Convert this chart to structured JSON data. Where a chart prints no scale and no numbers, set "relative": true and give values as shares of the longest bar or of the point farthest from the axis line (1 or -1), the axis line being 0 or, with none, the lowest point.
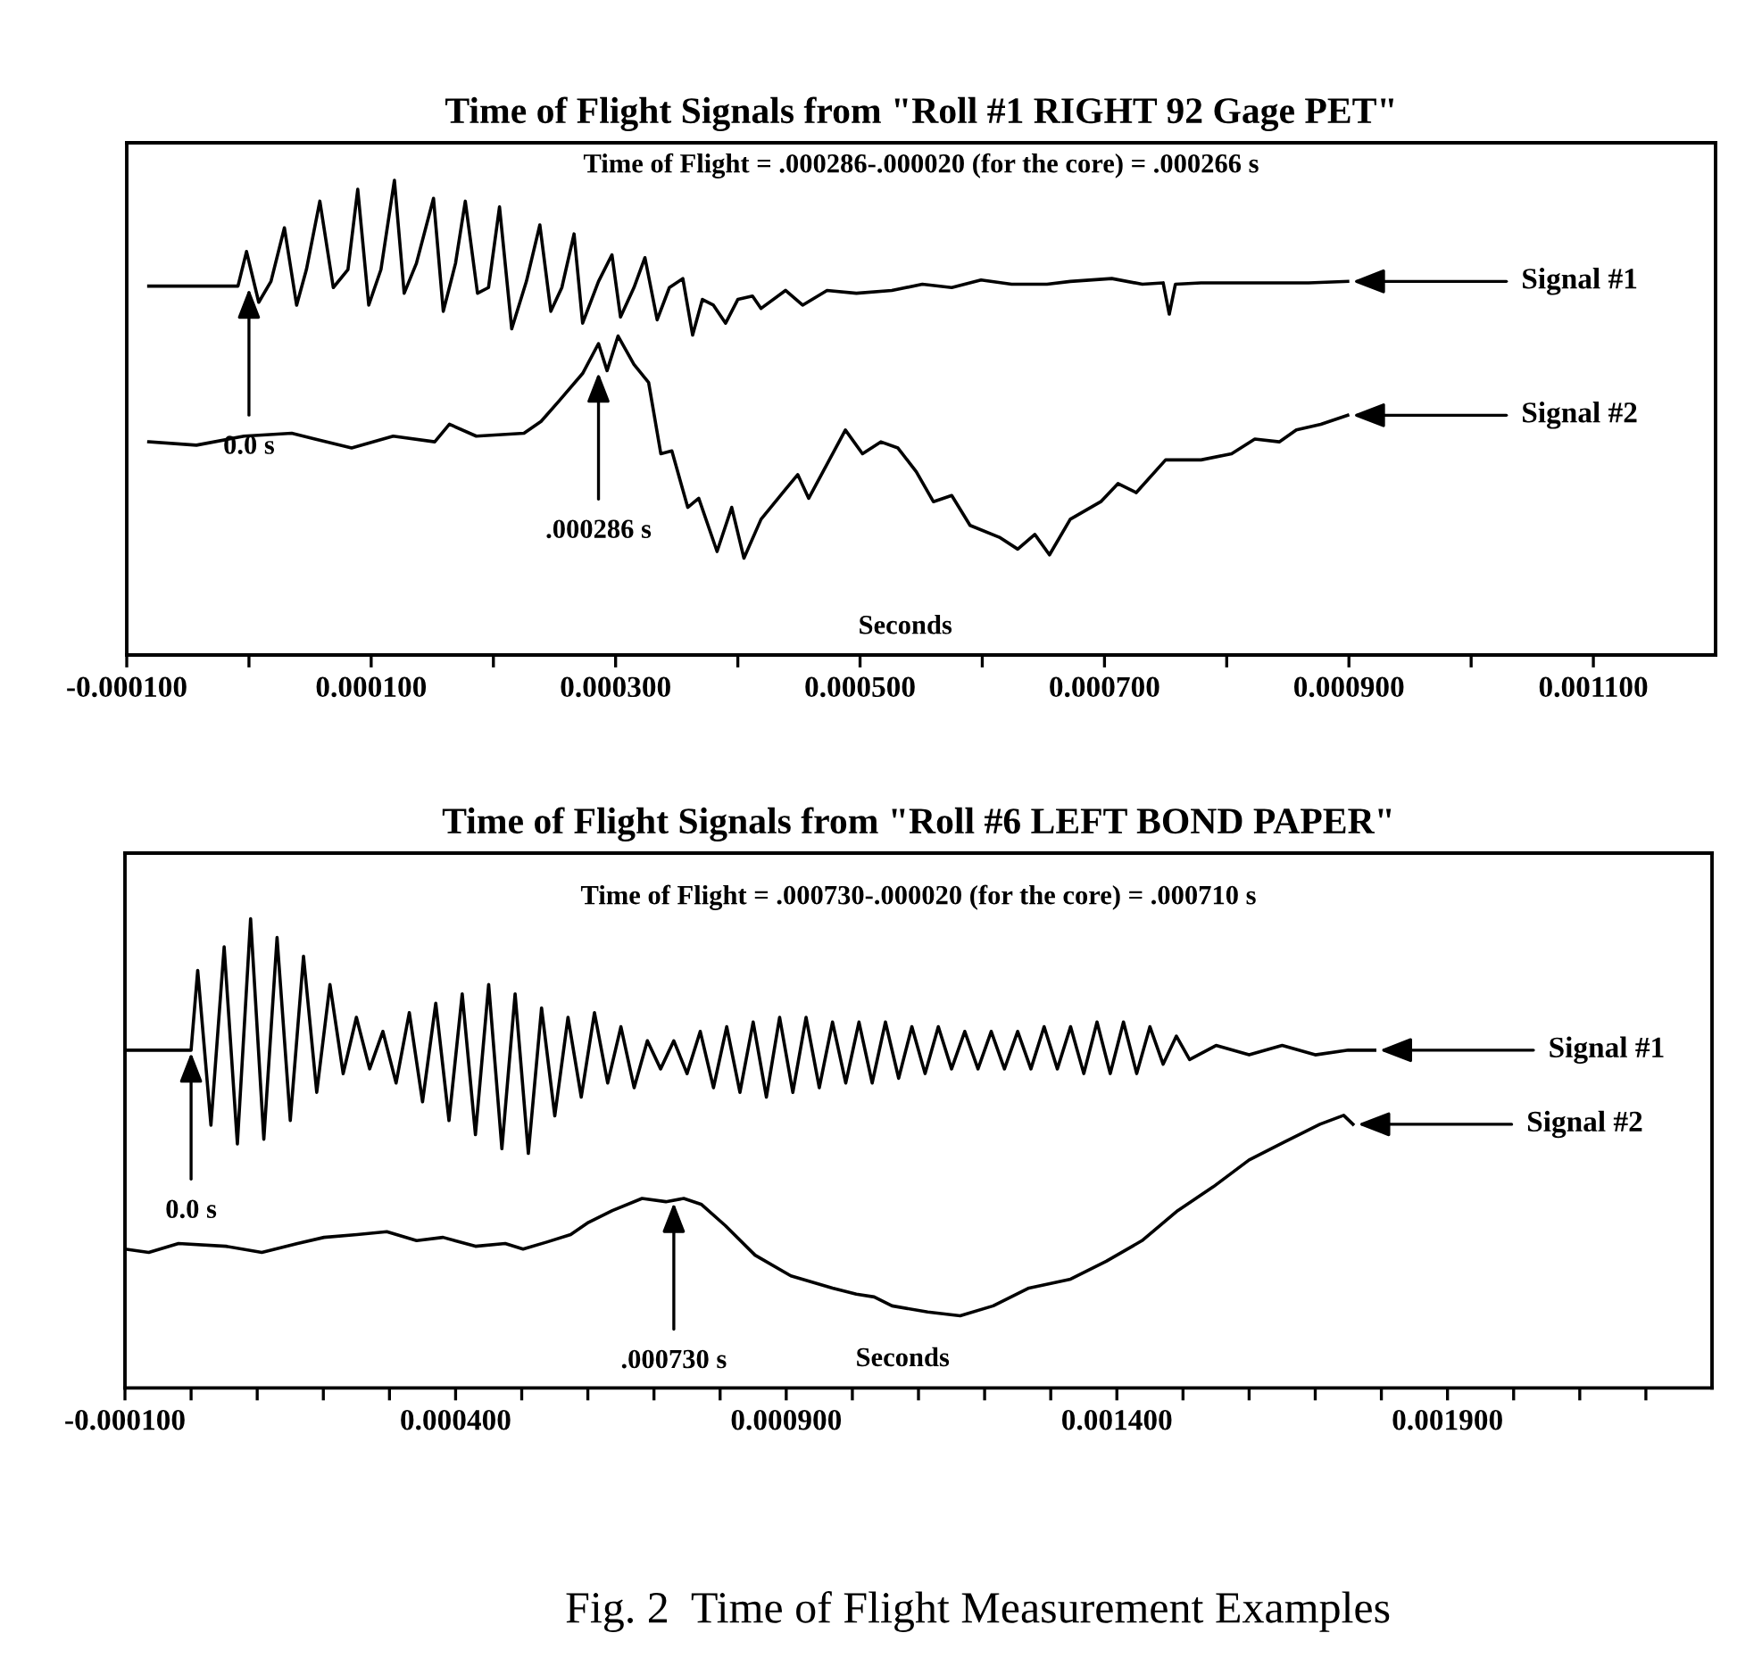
{
  "chart_data": [
    {
      "type": "line",
      "title": "Time of Flight Signals from \"Roll #1 RIGHT 92 Gage PET\"",
      "xlabel": "Seconds",
      "relative": true,
      "xlim": [
        -0.0001,
        0.0012
      ],
      "xticks": [
        {
          "value": -0.0001,
          "label": "-0.000100"
        },
        {
          "value": 0.0,
          "label": null
        },
        {
          "value": 0.0001,
          "label": "0.000100"
        },
        {
          "value": 0.0002,
          "label": null
        },
        {
          "value": 0.0003,
          "label": "0.000300"
        },
        {
          "value": 0.0004,
          "label": null
        },
        {
          "value": 0.0005,
          "label": "0.000500"
        },
        {
          "value": 0.0006,
          "label": null
        },
        {
          "value": 0.0007,
          "label": "0.000700"
        },
        {
          "value": 0.0008,
          "label": null
        },
        {
          "value": 0.0009,
          "label": "0.000900"
        },
        {
          "value": 0.001,
          "label": null
        },
        {
          "value": 0.0011,
          "label": "0.001100"
        }
      ],
      "series": [
        {
          "name": "Signal #1",
          "color": "#000000",
          "x": [
            -8.2e-05,
            -9e-06,
            -2e-06,
            8e-06,
            1.8e-05,
            2.9e-05,
            3.9e-05,
            4.7e-05,
            5.8e-05,
            6.9e-05,
            8.1e-05,
            8.9e-05,
            9.8e-05,
            0.000108,
            0.000119,
            0.000127,
            0.000137,
            0.000151,
            0.000159,
            0.000169,
            0.000177,
            0.000187,
            0.000196,
            0.000205,
            0.000215,
            0.000227,
            0.000238,
            0.000247,
            0.000256,
            0.000266,
            0.000273,
            0.000286,
            0.000297,
            0.000304,
            0.000315,
            0.000324,
            0.000334,
            0.000344,
            0.000355,
            0.000363,
            0.000371,
            0.00038,
            0.00039,
            0.0004,
            0.000412,
            0.000419,
            0.000439,
            0.000453,
            0.000473,
            0.000497,
            0.000526,
            0.000551,
            0.000575,
            0.000599,
            0.000624,
            0.000653,
            0.000672,
            0.000706,
            0.000731,
            0.000748,
            0.000753,
            0.000758,
            0.000779,
            0.000818,
            0.000867,
            0.000899
          ],
          "values": [
            0.777,
            0.777,
            0.85,
            0.743,
            0.787,
            0.9,
            0.737,
            0.812,
            0.956,
            0.774,
            0.812,
            0.981,
            0.737,
            0.812,
            1.0,
            0.762,
            0.825,
            0.962,
            0.724,
            0.825,
            0.956,
            0.762,
            0.774,
            0.944,
            0.687,
            0.787,
            0.906,
            0.724,
            0.774,
            0.887,
            0.699,
            0.787,
            0.843,
            0.712,
            0.774,
            0.837,
            0.706,
            0.774,
            0.793,
            0.674,
            0.749,
            0.737,
            0.699,
            0.749,
            0.756,
            0.73,
            0.768,
            0.737,
            0.768,
            0.762,
            0.768,
            0.781,
            0.774,
            0.79,
            0.781,
            0.781,
            0.787,
            0.793,
            0.781,
            0.784,
            0.718,
            0.781,
            0.784,
            0.784,
            0.784,
            0.787
          ]
        },
        {
          "name": "Signal #2",
          "color": "#000000",
          "x": [
            -8.2e-05,
            -4.3e-05,
            -4e-06,
            3.5e-05,
            5.4e-05,
            8.4e-05,
            0.000118,
            0.000152,
            0.000164,
            0.000186,
            0.000225,
            0.000239,
            0.000254,
            0.000273,
            0.000286,
            0.000293,
            0.000302,
            0.000315,
            0.000327,
            0.000337,
            0.000346,
            0.000359,
            0.000368,
            0.000383,
            0.000395,
            0.000405,
            0.000419,
            0.000439,
            0.000449,
            0.000458,
            0.000488,
            0.000502,
            0.000517,
            0.000531,
            0.000546,
            0.00056,
            0.000575,
            0.00059,
            0.000614,
            0.000629,
            0.000643,
            0.000655,
            0.000672,
            0.000697,
            0.000711,
            0.000726,
            0.00075,
            0.000779,
            0.000804,
            0.000823,
            0.000843,
            0.000857,
            0.000877,
            0.000899
          ],
          "values": [
            0.449,
            0.442,
            0.461,
            0.467,
            0.455,
            0.436,
            0.461,
            0.449,
            0.486,
            0.461,
            0.467,
            0.492,
            0.536,
            0.593,
            0.656,
            0.599,
            0.672,
            0.612,
            0.574,
            0.424,
            0.43,
            0.311,
            0.33,
            0.218,
            0.311,
            0.204,
            0.286,
            0.349,
            0.38,
            0.33,
            0.474,
            0.424,
            0.449,
            0.436,
            0.386,
            0.323,
            0.336,
            0.273,
            0.248,
            0.223,
            0.254,
            0.211,
            0.286,
            0.323,
            0.361,
            0.342,
            0.411,
            0.411,
            0.424,
            0.455,
            0.449,
            0.474,
            0.486,
            0.505
          ]
        }
      ],
      "annotations": [
        "Time of Flight = .000286-.000020 (for the core) = .000266 s",
        {
          "text": "0.0 s",
          "x": 0.0,
          "y": 0.777
        },
        {
          "text": ".000286 s",
          "x": 0.000286,
          "y": 0.6
        }
      ]
    },
    {
      "type": "line",
      "title": "Time of Flight Signals from \"Roll #6 LEFT BOND PAPER\"",
      "xlabel": "Seconds",
      "relative": true,
      "xlim": [
        -0.0001,
        0.0023
      ],
      "xticks": [
        {
          "value": -0.0001,
          "label": "-0.000100"
        },
        {
          "value": 0.0,
          "label": null
        },
        {
          "value": 0.0001,
          "label": null
        },
        {
          "value": 0.0002,
          "label": null
        },
        {
          "value": 0.0003,
          "label": null
        },
        {
          "value": 0.0004,
          "label": "0.000400"
        },
        {
          "value": 0.0005,
          "label": null
        },
        {
          "value": 0.0006,
          "label": null
        },
        {
          "value": 0.0007,
          "label": null
        },
        {
          "value": 0.0008,
          "label": null
        },
        {
          "value": 0.0009,
          "label": "0.000900"
        },
        {
          "value": 0.001,
          "label": null
        },
        {
          "value": 0.0011,
          "label": null
        },
        {
          "value": 0.0012,
          "label": null
        },
        {
          "value": 0.0013,
          "label": null
        },
        {
          "value": 0.0014,
          "label": "0.001400"
        },
        {
          "value": 0.0015,
          "label": null
        },
        {
          "value": 0.0016,
          "label": null
        },
        {
          "value": 0.0017,
          "label": null
        },
        {
          "value": 0.0018,
          "label": null
        },
        {
          "value": 0.0019,
          "label": "0.001900"
        },
        {
          "value": 0.002,
          "label": null
        },
        {
          "value": 0.0021,
          "label": null
        },
        {
          "value": 0.0022,
          "label": null
        }
      ],
      "series": [
        {
          "name": "Signal #1",
          "color": "#000000",
          "x": [
            -0.0001,
            0.0,
            1e-05,
            3e-05,
            5e-05,
            7e-05,
            9e-05,
            0.00011,
            0.00013,
            0.00015,
            0.00017,
            0.00019,
            0.00021,
            0.00023,
            0.00025,
            0.00027,
            0.00029,
            0.00031,
            0.00033,
            0.00035,
            0.00037,
            0.00039,
            0.00041,
            0.00043,
            0.00045,
            0.00047,
            0.00049,
            0.00051,
            0.00053,
            0.00055,
            0.00057,
            0.00059,
            0.00061,
            0.00063,
            0.00065,
            0.00067,
            0.00069,
            0.00071,
            0.00073,
            0.00075,
            0.00077,
            0.00079,
            0.00081,
            0.00083,
            0.00085,
            0.00087,
            0.00089,
            0.00091,
            0.00093,
            0.00095,
            0.00097,
            0.00099,
            0.00101,
            0.00103,
            0.00105,
            0.00107,
            0.00109,
            0.00111,
            0.00113,
            0.00115,
            0.00117,
            0.00119,
            0.00121,
            0.00123,
            0.00125,
            0.00127,
            0.00129,
            0.00131,
            0.00133,
            0.00135,
            0.00137,
            0.00139,
            0.00141,
            0.00143,
            0.00145,
            0.00147,
            0.00149,
            0.00151,
            0.00155,
            0.0016,
            0.00165,
            0.0017,
            0.00175,
            0.00179
          ],
          "values": [
            0.72,
            0.72,
            0.89,
            0.56,
            0.94,
            0.52,
            1.0,
            0.53,
            0.96,
            0.57,
            0.92,
            0.63,
            0.86,
            0.67,
            0.79,
            0.68,
            0.76,
            0.65,
            0.8,
            0.61,
            0.82,
            0.57,
            0.84,
            0.54,
            0.86,
            0.51,
            0.84,
            0.5,
            0.81,
            0.58,
            0.79,
            0.62,
            0.8,
            0.65,
            0.77,
            0.64,
            0.74,
            0.68,
            0.74,
            0.67,
            0.76,
            0.64,
            0.77,
            0.63,
            0.78,
            0.62,
            0.79,
            0.63,
            0.79,
            0.64,
            0.78,
            0.65,
            0.78,
            0.65,
            0.78,
            0.66,
            0.77,
            0.67,
            0.77,
            0.68,
            0.76,
            0.68,
            0.76,
            0.68,
            0.76,
            0.68,
            0.77,
            0.68,
            0.77,
            0.67,
            0.78,
            0.67,
            0.78,
            0.67,
            0.77,
            0.69,
            0.75,
            0.7,
            0.73,
            0.71,
            0.73,
            0.71,
            0.72,
            0.72
          ]
        },
        {
          "name": "Signal #2",
          "color": "#000000",
          "x": [
            -0.0001,
            -6.4e-05,
            -1.9e-05,
            5.3e-05,
            0.000107,
            0.000161,
            0.000201,
            0.000251,
            0.000296,
            0.000341,
            0.000381,
            0.00043,
            0.000475,
            0.000502,
            0.000538,
            0.000574,
            0.000601,
            0.000637,
            0.000682,
            0.000718,
            0.000745,
            0.000772,
            0.000808,
            0.000853,
            0.000907,
            0.00097,
            0.001006,
            0.001033,
            0.00106,
            0.001114,
            0.001163,
            0.001213,
            0.001267,
            0.00133,
            0.001384,
            0.001438,
            0.001492,
            0.001546,
            0.0016,
            0.001653,
            0.001707,
            0.001743,
            0.001757
          ],
          "values": [
            0.296,
            0.289,
            0.308,
            0.302,
            0.289,
            0.308,
            0.321,
            0.327,
            0.333,
            0.314,
            0.321,
            0.302,
            0.308,
            0.296,
            0.311,
            0.327,
            0.353,
            0.378,
            0.404,
            0.397,
            0.404,
            0.391,
            0.346,
            0.283,
            0.239,
            0.213,
            0.2,
            0.194,
            0.175,
            0.162,
            0.154,
            0.175,
            0.213,
            0.232,
            0.27,
            0.314,
            0.378,
            0.429,
            0.486,
            0.524,
            0.562,
            0.581,
            0.562
          ]
        }
      ],
      "annotations": [
        "Time of Flight = .000730-.000020 (for the core) = .000710 s",
        {
          "text": "0.0 s",
          "x": 0.0,
          "y": 0.72
        },
        {
          "text": ".000730 s",
          "x": 0.00073,
          "y": 0.4
        },
        "Fig. 2  Time of Flight Measurement Examples"
      ]
    }
  ]
}
